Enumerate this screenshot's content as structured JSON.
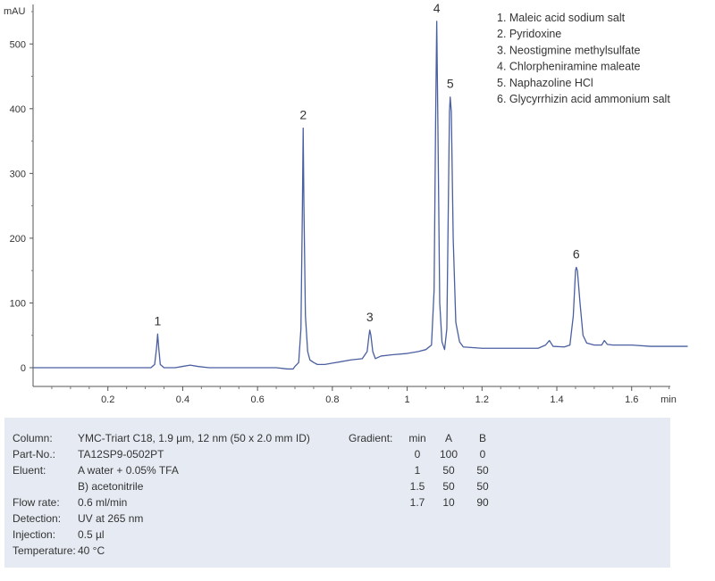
{
  "chart_data": {
    "type": "line",
    "title": "",
    "xlabel": "min",
    "ylabel": "mAU",
    "xlim": [
      0.0,
      1.75
    ],
    "ylim": [
      -30,
      560
    ],
    "x_ticks": [
      0.2,
      0.4,
      0.6,
      0.8,
      1,
      1.2,
      1.4,
      1.6
    ],
    "x_tick_labels": [
      "0.2",
      "0.4",
      "0.6",
      "0.8",
      "1",
      "1.2",
      "1.4",
      "1.6"
    ],
    "y_ticks": [
      0,
      100,
      200,
      300,
      400,
      500
    ],
    "y_tick_labels": [
      "0",
      "100",
      "200",
      "300",
      "400",
      "500"
    ],
    "grid": false,
    "peaks": [
      {
        "label": "1",
        "x": 0.333,
        "height": 52
      },
      {
        "label": "2",
        "x": 0.722,
        "height": 370
      },
      {
        "label": "3",
        "x": 0.9,
        "height": 58
      },
      {
        "label": "4",
        "x": 1.079,
        "height": 535
      },
      {
        "label": "5",
        "x": 1.115,
        "height": 418
      },
      {
        "label": "6",
        "x": 1.452,
        "height": 155
      }
    ],
    "series": [
      {
        "x": [
          0,
          0.25,
          0.3,
          0.315,
          0.325,
          0.33,
          0.333,
          0.336,
          0.34,
          0.35,
          0.36,
          0.38,
          0.4,
          0.42,
          0.44,
          0.47,
          0.5,
          0.55,
          0.6,
          0.65,
          0.68,
          0.695,
          0.7,
          0.71,
          0.716,
          0.72,
          0.722,
          0.724,
          0.728,
          0.734,
          0.74,
          0.75,
          0.76,
          0.78,
          0.8,
          0.85,
          0.88,
          0.893,
          0.898,
          0.9,
          0.903,
          0.908,
          0.915,
          0.93,
          0.96,
          1,
          1.03,
          1.05,
          1.065,
          1.072,
          1.076,
          1.079,
          1.082,
          1.087,
          1.093,
          1.1,
          1.106,
          1.11,
          1.113,
          1.115,
          1.118,
          1.123,
          1.13,
          1.14,
          1.15,
          1.2,
          1.25,
          1.3,
          1.35,
          1.37,
          1.38,
          1.39,
          1.42,
          1.435,
          1.444,
          1.45,
          1.452,
          1.455,
          1.462,
          1.47,
          1.48,
          1.5,
          1.52,
          1.527,
          1.535,
          1.55,
          1.6,
          1.65,
          1.7,
          1.75
        ],
        "y": [
          0,
          0,
          0,
          0,
          5,
          30,
          52,
          30,
          5,
          0,
          0,
          0,
          2,
          4,
          2,
          0,
          0,
          0,
          0,
          0,
          -2,
          -2,
          2,
          8,
          60,
          250,
          370,
          250,
          80,
          25,
          12,
          8,
          5,
          5,
          7,
          12,
          14,
          25,
          50,
          58,
          50,
          25,
          14,
          18,
          20,
          22,
          25,
          28,
          35,
          120,
          380,
          535,
          380,
          100,
          40,
          28,
          60,
          250,
          395,
          418,
          395,
          200,
          70,
          40,
          32,
          30,
          30,
          30,
          30,
          35,
          42,
          33,
          32,
          35,
          80,
          150,
          155,
          150,
          100,
          50,
          38,
          35,
          35,
          42,
          36,
          35,
          35,
          33,
          33,
          33
        ]
      }
    ],
    "legend": [
      "1. Maleic acid sodium salt",
      "2. Pyridoxine",
      "3. Neostigmine methylsulfate",
      "4. Chlorpheniramine maleate",
      "5. Naphazoline HCl",
      "6. Glycyrrhizin acid ammonium salt"
    ],
    "legend_position": "top-right",
    "line_color": "#4a5fa0"
  },
  "conditions": [
    {
      "label": "Column:",
      "value": "YMC-Triart C18, 1.9 µm, 12 nm (50 x 2.0 mm ID)"
    },
    {
      "label": "Part-No.:",
      "value": "TA12SP9-0502PT"
    },
    {
      "label": "Eluent:",
      "value": "A   water + 0.05% TFA"
    },
    {
      "label": "",
      "value": "B)   acetonitrile"
    },
    {
      "label": "Flow rate:",
      "value": "0.6 ml/min"
    },
    {
      "label": "Detection:",
      "value": "UV at 265 nm"
    },
    {
      "label": "Injection:",
      "value": "0.5 µl"
    },
    {
      "label": "Temperature:",
      "value": "40 °C"
    }
  ],
  "gradient": {
    "label": "Gradient:",
    "headers": [
      "min",
      "A",
      "B"
    ],
    "rows": [
      [
        "0",
        "100",
        "0"
      ],
      [
        "1",
        "50",
        "50"
      ],
      [
        "1.5",
        "50",
        "50"
      ],
      [
        "1.7",
        "10",
        "90"
      ]
    ]
  }
}
